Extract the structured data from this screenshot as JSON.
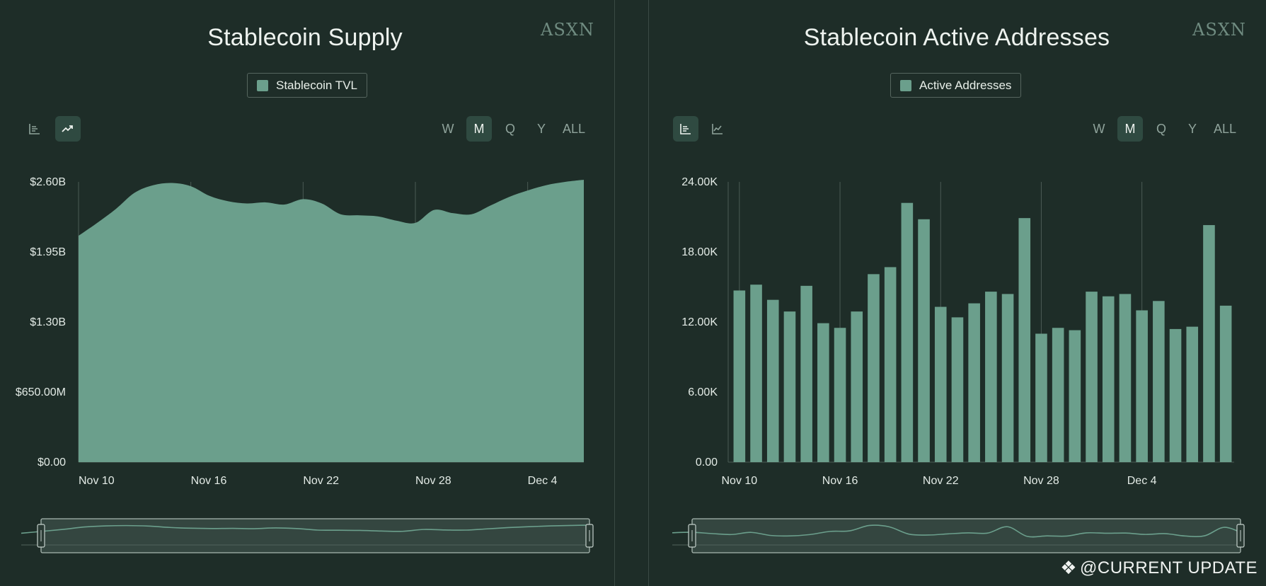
{
  "watermark": {
    "text": "@CURRENT UPDATE",
    "icon": "binance-diamond-icon"
  },
  "colors": {
    "background": "#1e2d28",
    "series": "#6b9f8c",
    "grid": "#4a5a54",
    "active_button": "#2f4a41"
  },
  "left": {
    "title": "Stablecoin Supply",
    "brand": "ASXN",
    "legend_label": "Stablecoin TVL",
    "range_buttons": [
      "W",
      "M",
      "Q",
      "Y",
      "ALL"
    ],
    "active_range": "M",
    "active_chart_type": "area"
  },
  "right": {
    "title": "Stablecoin Active Addresses",
    "brand": "ASXN",
    "legend_label": "Active Addresses",
    "range_buttons": [
      "W",
      "M",
      "Q",
      "Y",
      "ALL"
    ],
    "active_range": "M",
    "active_chart_type": "bar"
  },
  "chart_data": [
    {
      "type": "area",
      "title": "Stablecoin Supply",
      "series": [
        {
          "name": "Stablecoin TVL",
          "values": [
            2.1,
            2.22,
            2.35,
            2.5,
            2.57,
            2.59,
            2.56,
            2.47,
            2.42,
            2.4,
            2.41,
            2.39,
            2.44,
            2.4,
            2.3,
            2.29,
            2.28,
            2.24,
            2.22,
            2.34,
            2.31,
            2.3,
            2.38,
            2.46,
            2.52,
            2.57,
            2.6,
            2.62
          ]
        }
      ],
      "x": [
        "Nov 10",
        "Nov 11",
        "Nov 12",
        "Nov 13",
        "Nov 14",
        "Nov 15",
        "Nov 16",
        "Nov 17",
        "Nov 18",
        "Nov 19",
        "Nov 20",
        "Nov 21",
        "Nov 22",
        "Nov 23",
        "Nov 24",
        "Nov 25",
        "Nov 26",
        "Nov 27",
        "Nov 28",
        "Nov 29",
        "Nov 30",
        "Dec 1",
        "Dec 2",
        "Dec 3",
        "Dec 4",
        "Dec 5",
        "Dec 6",
        "Dec 7"
      ],
      "x_ticks": [
        "Nov 10",
        "Nov 16",
        "Nov 22",
        "Nov 28",
        "Dec 4"
      ],
      "y_ticks": [
        "$0.00",
        "$650.00M",
        "$1.30B",
        "$1.95B",
        "$2.60B"
      ],
      "ylim": [
        0,
        2.6
      ],
      "y_unit": "billions USD",
      "grid": "vertical"
    },
    {
      "type": "bar",
      "title": "Stablecoin Active Addresses",
      "series": [
        {
          "name": "Active Addresses",
          "values": [
            14700,
            15200,
            13900,
            12900,
            15100,
            11900,
            11500,
            12900,
            16100,
            16700,
            22200,
            20800,
            13300,
            12400,
            13600,
            14600,
            14400,
            20900,
            11000,
            11500,
            11300,
            14600,
            14200,
            14400,
            13000,
            13800,
            11400,
            11600,
            20300,
            13400
          ]
        }
      ],
      "x": [
        "Nov 10",
        "Nov 11",
        "Nov 12",
        "Nov 13",
        "Nov 14",
        "Nov 15",
        "Nov 16",
        "Nov 17",
        "Nov 18",
        "Nov 19",
        "Nov 20",
        "Nov 21",
        "Nov 22",
        "Nov 23",
        "Nov 24",
        "Nov 25",
        "Nov 26",
        "Nov 27",
        "Nov 28",
        "Nov 29",
        "Nov 30",
        "Dec 1",
        "Dec 2",
        "Dec 3",
        "Dec 4",
        "Dec 5",
        "Dec 6",
        "Dec 7",
        "Dec 8",
        "Dec 9"
      ],
      "x_ticks": [
        "Nov 10",
        "Nov 16",
        "Nov 22",
        "Nov 28",
        "Dec 4"
      ],
      "y_ticks": [
        "0.00",
        "6.00K",
        "12.00K",
        "18.00K",
        "24.00K"
      ],
      "ylim": [
        0,
        24000
      ],
      "grid": "vertical"
    }
  ]
}
